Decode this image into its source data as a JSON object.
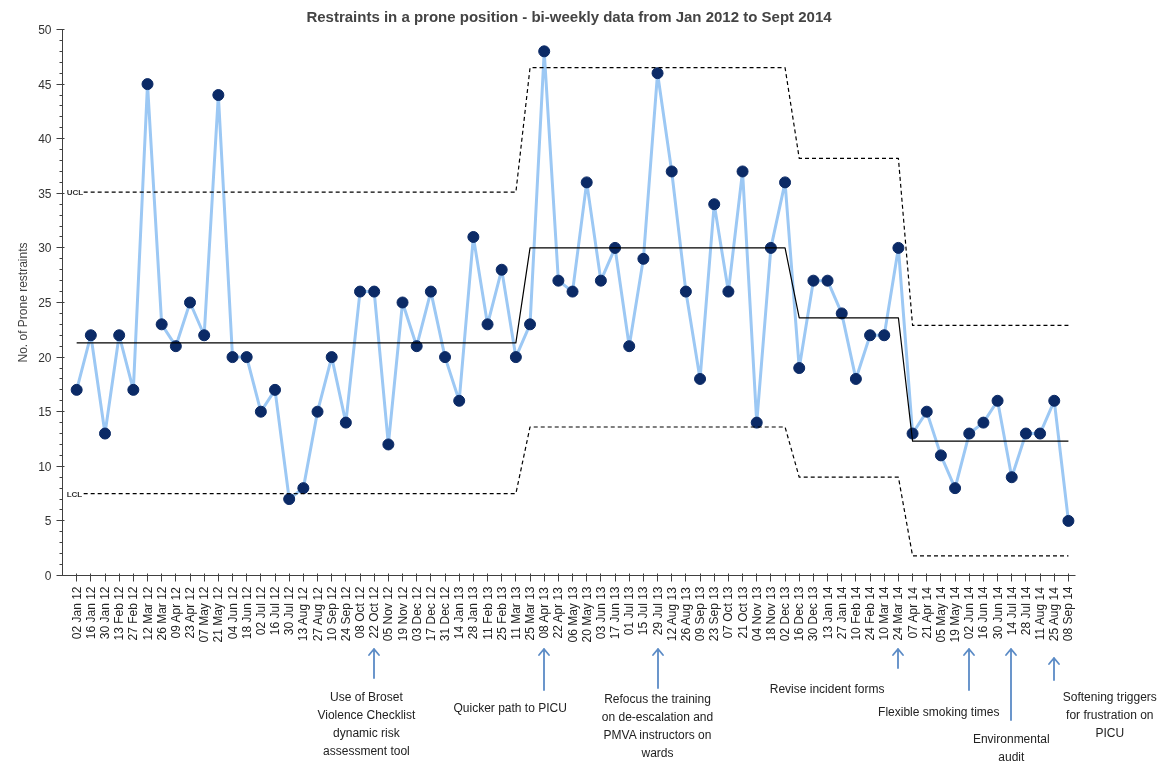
{
  "chart_data": {
    "type": "line",
    "title": "Restraints in a prone position - bi-weekly data from Jan 2012 to Sept 2014",
    "ylabel": "No. of Prone restraints",
    "categories": [
      "02 Jan 12",
      "16 Jan 12",
      "30 Jan 12",
      "13 Feb 12",
      "27 Feb 12",
      "12 Mar 12",
      "26 Mar 12",
      "09 Apr 12",
      "23 Apr 12",
      "07 May 12",
      "21 May 12",
      "04 Jun 12",
      "18 Jun 12",
      "02 Jul 12",
      "16 Jul 12",
      "30 Jul 12",
      "13 Aug 12",
      "27 Aug 12",
      "10 Sep 12",
      "24 Sep 12",
      "08 Oct 12",
      "22 Oct 12",
      "05 Nov 12",
      "19 Nov 12",
      "03 Dec 12",
      "17 Dec 12",
      "31 Dec 12",
      "14 Jan 13",
      "28 Jan 13",
      "11 Feb 13",
      "25 Feb 13",
      "11 Mar 13",
      "25 Mar 13",
      "08 Apr 13",
      "22 Apr 13",
      "06 May 13",
      "20 May 13",
      "03 Jun 13",
      "17 Jun 13",
      "01 Jul 13",
      "15 Jul 13",
      "29 Jul 13",
      "12 Aug 13",
      "26 Aug 13",
      "09 Sep 13",
      "23 Sep 13",
      "07 Oct 13",
      "21 Oct 13",
      "04 Nov 13",
      "18 Nov 13",
      "02 Dec 13",
      "16 Dec 13",
      "30 Dec 13",
      "13 Jan 14",
      "27 Jan 14",
      "10 Feb 14",
      "24 Feb 14",
      "10 Mar 14",
      "24 Mar 14",
      "07 Apr 14",
      "21 Apr 14",
      "05 May 14",
      "19 May 14",
      "02 Jun 14",
      "16 Jun 14",
      "30 Jun 14",
      "14 Jul 14",
      "28 Jul 14",
      "11 Aug 14",
      "25 Aug 14",
      "08 Sep 14"
    ],
    "series": [
      {
        "color": "#9cc8f4",
        "marker": "circle",
        "line_style": "solid",
        "colors": [
          "#0b2a66",
          "#0b2a66",
          "#0b2a66",
          "#0b2a66",
          "#0b2a66",
          "#0b2a66",
          "#0b2a66",
          "#0b2a66",
          "#0b2a66",
          "#0b2a66",
          "#0b2a66",
          "#0b2a66",
          "#0b2a66",
          "#0b2a66",
          "#0b2a66",
          "#0b2a66",
          "#0b2a66",
          "#0b2a66",
          "#0b2a66",
          "#0b2a66",
          "#0b2a66",
          "#0b2a66",
          "#0b2a66",
          "#0b2a66",
          "#0b2a66",
          "#0b2a66",
          "#0b2a66",
          "#0b2a66",
          "#0b2a66",
          "#0b2a66",
          "#0b2a66",
          "#0b2a66",
          "#0b2a66",
          "#0b2a66",
          "#0b2a66",
          "#0b2a66",
          "#0b2a66",
          "#0b2a66",
          "#0b2a66",
          "#0b2a66",
          "#0b2a66",
          "#0b2a66",
          "#0b2a66",
          "#0b2a66",
          "#0b2a66",
          "#0b2a66",
          "#0b2a66",
          "#0b2a66",
          "#0b2a66",
          "#0b2a66",
          "#0b2a66",
          "#0b2a66",
          "#0b2a66",
          "#0b2a66",
          "#0b2a66",
          "#0b2a66",
          "#0b2a66",
          "#0b2a66",
          "#0b2a66",
          "#0b2a66",
          "#0b2a66",
          "#0b2a66",
          "#0b2a66",
          "#0b2a66",
          "#0b2a66",
          "#0b2a66",
          "#0b2a66",
          "#0b2a66",
          "#0b2a66",
          "#0b2a66",
          "#0b2a66"
        ],
        "values": [
          17,
          22,
          13,
          22,
          17,
          45,
          23,
          21,
          25,
          22,
          44,
          20,
          20,
          15,
          17,
          7,
          8,
          15,
          20,
          14,
          26,
          26,
          12,
          25,
          21,
          26,
          20,
          16,
          31,
          23,
          28,
          20,
          23,
          48,
          27,
          26,
          36,
          27,
          30,
          21,
          29,
          46,
          37,
          26,
          18,
          34,
          26,
          37,
          14,
          30,
          36,
          19,
          27,
          27,
          24,
          18,
          22,
          22,
          30,
          13,
          15,
          11,
          8,
          13,
          14,
          16,
          9,
          13,
          13,
          16,
          5
        ]
      },
      {
        "color": "#000000",
        "marker": "none",
        "line_style": "solid",
        "values": [
          21.3,
          21.3,
          21.3,
          21.3,
          21.3,
          21.3,
          21.3,
          21.3,
          21.3,
          21.3,
          21.3,
          21.3,
          21.3,
          21.3,
          21.3,
          21.3,
          21.3,
          21.3,
          21.3,
          21.3,
          21.3,
          21.3,
          21.3,
          21.3,
          21.3,
          21.3,
          21.3,
          21.3,
          21.3,
          21.3,
          21.3,
          21.3,
          30,
          30,
          30,
          30,
          30,
          30,
          30,
          30,
          30,
          30,
          30,
          30,
          30,
          30,
          30,
          30,
          30,
          30,
          30,
          23.6,
          23.6,
          23.6,
          23.6,
          23.6,
          23.6,
          23.6,
          23.6,
          12.3,
          12.3,
          12.3,
          12.3,
          12.3,
          12.3,
          12.3,
          12.3,
          12.3,
          12.3,
          12.3,
          12.3
        ]
      },
      {
        "name": "UCL",
        "color": "#000000",
        "marker": "none",
        "line_style": "dashed",
        "values": [
          35.1,
          35.1,
          35.1,
          35.1,
          35.1,
          35.1,
          35.1,
          35.1,
          35.1,
          35.1,
          35.1,
          35.1,
          35.1,
          35.1,
          35.1,
          35.1,
          35.1,
          35.1,
          35.1,
          35.1,
          35.1,
          35.1,
          35.1,
          35.1,
          35.1,
          35.1,
          35.1,
          35.1,
          35.1,
          35.1,
          35.1,
          35.1,
          46.5,
          46.5,
          46.5,
          46.5,
          46.5,
          46.5,
          46.5,
          46.5,
          46.5,
          46.5,
          46.5,
          46.5,
          46.5,
          46.5,
          46.5,
          46.5,
          46.5,
          46.5,
          46.5,
          38.2,
          38.2,
          38.2,
          38.2,
          38.2,
          38.2,
          38.2,
          38.2,
          22.9,
          22.9,
          22.9,
          22.9,
          22.9,
          22.9,
          22.9,
          22.9,
          22.9,
          22.9,
          22.9,
          22.9
        ]
      },
      {
        "name": "LCL",
        "color": "#000000",
        "marker": "none",
        "line_style": "dashed",
        "values": [
          7.5,
          7.5,
          7.5,
          7.5,
          7.5,
          7.5,
          7.5,
          7.5,
          7.5,
          7.5,
          7.5,
          7.5,
          7.5,
          7.5,
          7.5,
          7.5,
          7.5,
          7.5,
          7.5,
          7.5,
          7.5,
          7.5,
          7.5,
          7.5,
          7.5,
          7.5,
          7.5,
          7.5,
          7.5,
          7.5,
          7.5,
          7.5,
          13.6,
          13.6,
          13.6,
          13.6,
          13.6,
          13.6,
          13.6,
          13.6,
          13.6,
          13.6,
          13.6,
          13.6,
          13.6,
          13.6,
          13.6,
          13.6,
          13.6,
          13.6,
          13.6,
          9.0,
          9.0,
          9.0,
          9.0,
          9.0,
          9.0,
          9.0,
          9.0,
          1.8,
          1.8,
          1.8,
          1.8,
          1.8,
          1.8,
          1.8,
          1.8,
          1.8,
          1.8,
          1.8,
          1.8
        ]
      }
    ],
    "ylim": [
      0,
      50
    ],
    "yticks": [
      0,
      5,
      10,
      15,
      20,
      25,
      30,
      35,
      40,
      45,
      50
    ],
    "grid": false,
    "annotations": [
      "Use of Broset\nViolence Checklist\ndynamic risk\nassessment tool",
      "Quicker path to PICU",
      "Refocus the training\non de-escalation and\nPMVA instructors on\nwards",
      "Revise incident forms",
      "Flexible smoking times",
      "Environmental\naudit",
      "Softening triggers\nfor frustration on\nPICU"
    ]
  }
}
